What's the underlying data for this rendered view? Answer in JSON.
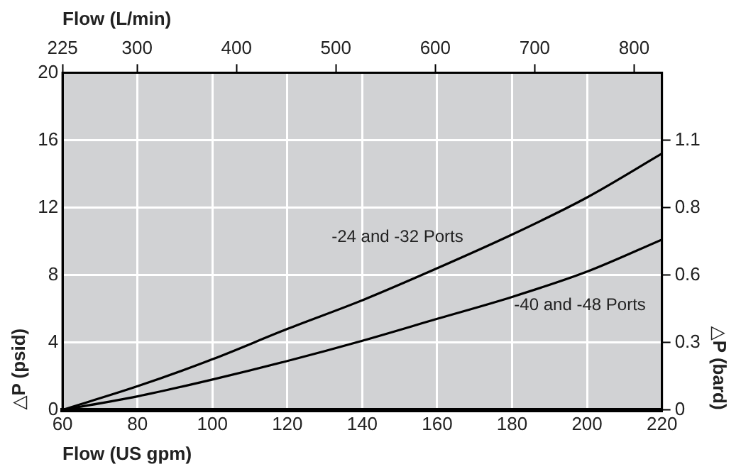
{
  "chart_data": {
    "type": "line",
    "xlabel": "Flow (US gpm)",
    "x2label": "Flow (L/min)",
    "ylabel": "△P (psid)",
    "y2label": "△P (bard)",
    "x": [
      60,
      80,
      100,
      120,
      140,
      160,
      180,
      200,
      220
    ],
    "series": [
      {
        "name": "-24 and -32 Ports",
        "color": "#000000",
        "values": [
          0,
          1.4,
          3.0,
          4.8,
          6.5,
          8.4,
          10.4,
          12.6,
          15.2
        ]
      },
      {
        "name": "-40 and -48 Ports",
        "color": "#000000",
        "values": [
          0,
          0.8,
          1.8,
          2.9,
          4.1,
          5.4,
          6.7,
          8.2,
          10.1
        ]
      }
    ],
    "xlim": [
      60,
      220
    ],
    "xticks": [
      60,
      80,
      100,
      120,
      140,
      160,
      180,
      200,
      220
    ],
    "x2lim": [
      225,
      828
    ],
    "x2ticks": [
      225,
      300,
      400,
      500,
      600,
      700,
      800
    ],
    "ylim": [
      0,
      20
    ],
    "yticks": [
      0,
      4,
      8,
      12,
      16,
      20
    ],
    "y2lim": [
      0,
      1.379
    ],
    "y2ticks": [
      0,
      {
        "value": 0.276,
        "label": "0.3"
      },
      {
        "value": 0.552,
        "label": "0.6"
      },
      {
        "value": 0.827,
        "label": "0.8"
      },
      {
        "value": 1.103,
        "label": "1.1"
      }
    ],
    "grid": true,
    "legend": false,
    "marker": "none",
    "line_style": "solid"
  }
}
